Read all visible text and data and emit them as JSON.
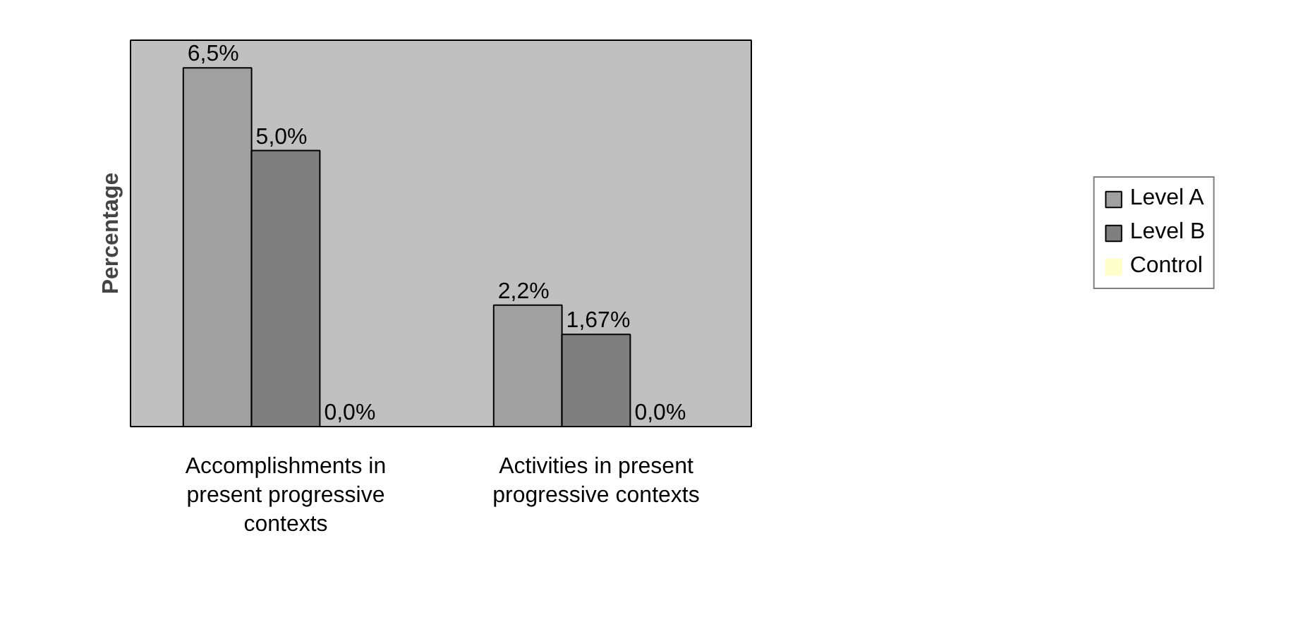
{
  "chart_data": {
    "type": "bar",
    "ylabel": "Percentage",
    "categories": [
      "Accomplishments in present progressive contexts",
      "Activities in present progressive contexts"
    ],
    "series": [
      {
        "name": "Level A",
        "color": "#a0a0a0",
        "values": [
          6.5,
          2.2
        ],
        "value_labels": [
          "6,5%",
          "2,2%"
        ]
      },
      {
        "name": "Level B",
        "color": "#7f7f7f",
        "values": [
          5.0,
          1.67
        ],
        "value_labels": [
          "5,0%",
          "1,67%"
        ]
      },
      {
        "name": "Control",
        "color": "#ffffcc",
        "values": [
          0.0,
          0.0
        ],
        "value_labels": [
          "0,0%",
          "0,0%"
        ]
      }
    ],
    "ylim": [
      0,
      7
    ],
    "grid": false,
    "legend": "right"
  }
}
